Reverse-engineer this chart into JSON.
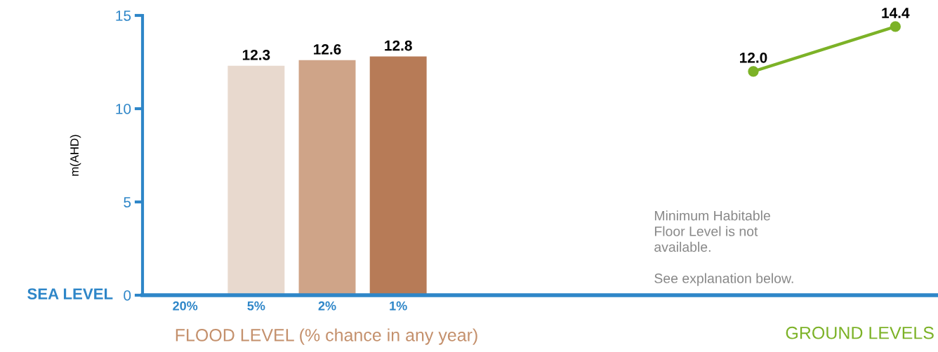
{
  "chart_data": {
    "type": "bar",
    "ylabel": "m(AHD)",
    "xlabel": "FLOOD LEVEL (% chance in any year)",
    "categories": [
      "20%",
      "5%",
      "2%",
      "1%",
      null,
      null,
      null,
      null,
      null,
      null,
      null
    ],
    "series": [
      {
        "colors": [
          "#e8d9ce",
          "#e8d9ce",
          "#cfa488",
          "#b77b57",
          null,
          null,
          null,
          null,
          null,
          null,
          null
        ],
        "values": [
          null,
          12.3,
          12.6,
          12.8,
          null,
          null,
          null,
          null,
          null,
          null,
          null
        ]
      },
      {
        "type": "line",
        "color": "#7cb227",
        "values": [
          null,
          null,
          null,
          null,
          null,
          null,
          null,
          null,
          12.0,
          null,
          14.4
        ],
        "value_labels": [
          null,
          null,
          null,
          null,
          null,
          null,
          null,
          null,
          "12.0",
          null,
          "14.4"
        ]
      }
    ],
    "ylim": [
      0,
      15
    ],
    "yticks": [
      0,
      5,
      10,
      15
    ],
    "grid": false,
    "legend": false,
    "marker": "circle",
    "line_style": "solid",
    "data_labels": true,
    "annotations": [
      "Minimum Habitable\nFloor Level is not\navailable.\n\nSee explanation below.",
      "GROUND LEVELS",
      "SEA LEVEL"
    ]
  }
}
